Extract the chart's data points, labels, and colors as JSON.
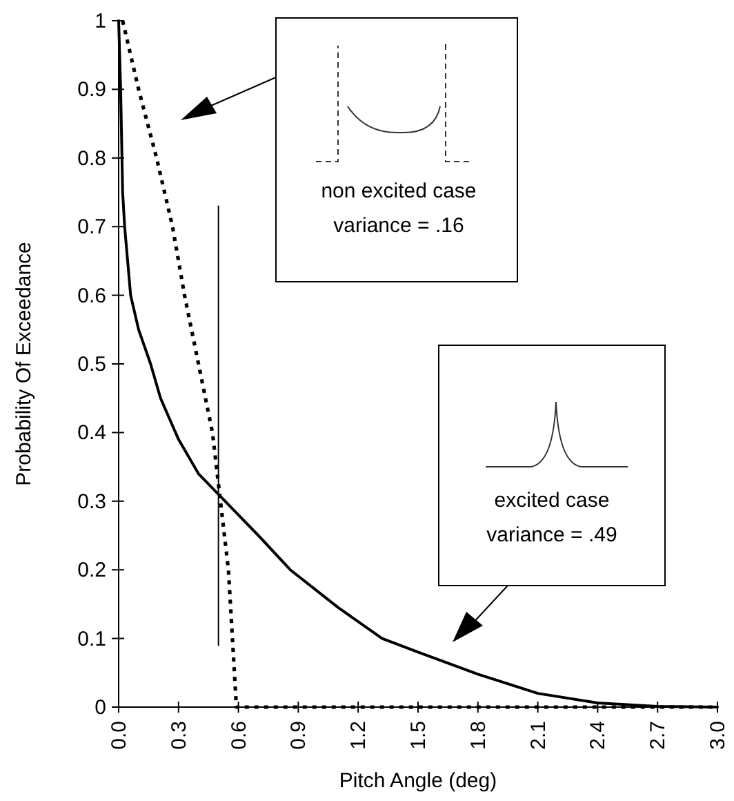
{
  "chart_data": {
    "type": "line",
    "xlabel": "Pitch Angle (deg)",
    "ylabel": "Probability Of Exceedance",
    "xlim": [
      0,
      3
    ],
    "ylim": [
      0,
      1
    ],
    "xticks": [
      {
        "value": 0,
        "label": "0.0"
      },
      {
        "value": 0.3,
        "label": "0.3"
      },
      {
        "value": 0.6,
        "label": "0.6"
      },
      {
        "value": 0.9,
        "label": "0.9"
      },
      {
        "value": 1.2,
        "label": "1.2"
      },
      {
        "value": 1.5,
        "label": "1.5"
      },
      {
        "value": 1.8,
        "label": "1.8"
      },
      {
        "value": 2.1,
        "label": "2.1"
      },
      {
        "value": 2.4,
        "label": "2.4"
      },
      {
        "value": 2.7,
        "label": "2.7"
      },
      {
        "value": 3,
        "label": "3.0"
      }
    ],
    "yticks": [
      0,
      0.1,
      0.2,
      0.3,
      0.4,
      0.5,
      0.6,
      0.7,
      0.8,
      0.9,
      1
    ],
    "grid": false,
    "marker": "none",
    "series": [
      {
        "color": "#000000",
        "line_style": "solid",
        "x": [
          0,
          0.01,
          0.02,
          0.03,
          0.06,
          0.1,
          0.16,
          0.21,
          0.3,
          0.4,
          0.5,
          0.7,
          0.86,
          1.1,
          1.32,
          1.5,
          1.8,
          2.1,
          2.4,
          2.7,
          3.0
        ],
        "values": [
          1,
          0.9,
          0.75,
          0.7,
          0.6,
          0.55,
          0.5,
          0.45,
          0.39,
          0.34,
          0.31,
          0.25,
          0.2,
          0.145,
          0.1,
          0.08,
          0.048,
          0.02,
          0.006,
          0.001,
          0
        ]
      },
      {
        "color": "#000000",
        "line_style": "dotted",
        "x": [
          0.02,
          0.1,
          0.19,
          0.27,
          0.33,
          0.4,
          0.47,
          0.51,
          0.55,
          0.57,
          0.59,
          3.0
        ],
        "values": [
          1,
          0.9,
          0.8,
          0.7,
          0.6,
          0.5,
          0.4,
          0.3,
          0.2,
          0.1,
          0,
          0
        ]
      },
      {
        "color": "#000000",
        "line_style": "solid",
        "x": [
          0.5,
          0.5
        ],
        "values": [
          0.09,
          0.73
        ]
      }
    ],
    "annotations": [
      "non excited case\nvariance = .16",
      "excited case\nvariance = .49"
    ]
  }
}
